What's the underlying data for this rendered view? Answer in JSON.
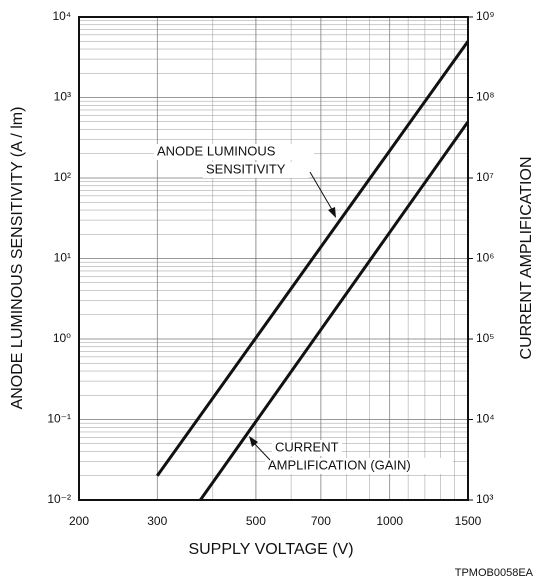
{
  "chart_data": {
    "type": "line",
    "xlabel": "SUPPLY VOLTAGE (V)",
    "ylabel": "ANODE LUMINOUS SENSITIVITY (A / lm)",
    "y2label": "CURRENT AMPLIFICATION",
    "xlog": true,
    "ylog": true,
    "grid": true,
    "xlim": [
      200,
      1500
    ],
    "xticks": [
      200,
      300,
      500,
      700,
      1000,
      1500
    ],
    "ylim": [
      0.01,
      10000
    ],
    "yticks": [
      {
        "value": 0.01,
        "label": "10⁻²"
      },
      {
        "value": 0.1,
        "label": "10⁻¹"
      },
      {
        "value": 1,
        "label": "10⁰"
      },
      {
        "value": 10,
        "label": "10¹"
      },
      {
        "value": 100,
        "label": "10²"
      },
      {
        "value": 1000,
        "label": "10³"
      },
      {
        "value": 10000,
        "label": "10⁴"
      }
    ],
    "y2lim": [
      1000,
      1000000000
    ],
    "y2ticks": [
      {
        "value": 1000,
        "label": "10³"
      },
      {
        "value": 10000,
        "label": "10⁴"
      },
      {
        "value": 100000,
        "label": "10⁵"
      },
      {
        "value": 1000000,
        "label": "10⁶"
      },
      {
        "value": 10000000,
        "label": "10⁷"
      },
      {
        "value": 100000000,
        "label": "10⁸"
      },
      {
        "value": 1000000000,
        "label": "10⁹"
      }
    ],
    "series": [
      {
        "name": "ANODE LUMINOUS SENSITIVITY",
        "color": "#111111",
        "x": [
          300,
          1500
        ],
        "values": [
          0.02,
          5000
        ]
      },
      {
        "name": "CURRENT AMPLIFICATION (GAIN)",
        "color": "#111111",
        "axis": "y2",
        "x": [
          375,
          1500
        ],
        "values": [
          1000,
          50000000
        ]
      }
    ],
    "annotations": [
      "ANODE LUMINOUS",
      "SENSITIVITY",
      "CURRENT",
      "AMPLIFICATION (GAIN)"
    ],
    "footnote": "TPMOB0058EA"
  }
}
